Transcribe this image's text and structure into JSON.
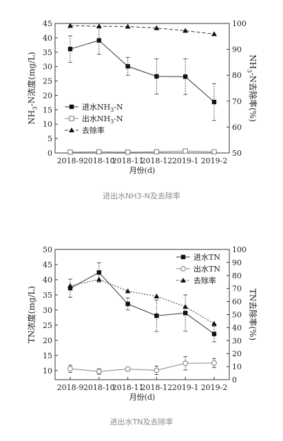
{
  "chart_data": [
    {
      "type": "line",
      "title": "",
      "caption": "进出水NH3-N及去除率",
      "categories": [
        "2018-9",
        "2018-10",
        "2018-11",
        "2018-12",
        "2019-1",
        "2019-2"
      ],
      "xlabel": "月份(d)",
      "ylabel": "NH3-N浓度(mg/L)",
      "y2label": "NH3-N去除率(%)",
      "ylim": [
        0,
        45
      ],
      "y2lim": [
        50,
        100
      ],
      "yticks": [
        0,
        5,
        10,
        15,
        20,
        25,
        30,
        35,
        40,
        45
      ],
      "y2ticks": [
        50,
        60,
        70,
        80,
        90,
        100
      ],
      "legend_position": "left-middle",
      "grid": false,
      "series": [
        {
          "name": "进水NH3-N",
          "axis": "left",
          "marker": "filled-square",
          "line": "solid",
          "values": [
            36.1,
            39.1,
            30.1,
            26.6,
            26.5,
            17.7
          ],
          "error": [
            4.6,
            4.8,
            3.1,
            6.1,
            6.2,
            6.4
          ]
        },
        {
          "name": "出水NH3-N",
          "axis": "left",
          "marker": "open-square",
          "line": "solid",
          "values": [
            0.3,
            0.4,
            0.3,
            0.4,
            0.7,
            0.4
          ],
          "error": [
            0.4,
            0.5,
            0.4,
            0.6,
            0.7,
            0.4
          ]
        },
        {
          "name": "去除率",
          "axis": "right",
          "marker": "filled-triangle",
          "line": "dashed",
          "values": [
            99.1,
            98.9,
            98.8,
            98.2,
            97.2,
            95.9
          ]
        }
      ]
    },
    {
      "type": "line",
      "title": "",
      "caption": "进出水TN及去除率",
      "categories": [
        "2018-9",
        "2018-10",
        "2018-11",
        "2018-12",
        "2019-1",
        "2019-2"
      ],
      "xlabel": "月份(d)",
      "ylabel": "TN浓度(mg/L)",
      "y2label": "TN去除率(%)",
      "ylim": [
        7,
        50
      ],
      "y2lim": [
        0,
        100
      ],
      "yticks": [
        10,
        15,
        20,
        25,
        30,
        35,
        40,
        45,
        50
      ],
      "y2ticks": [
        0,
        10,
        20,
        30,
        40,
        50,
        60,
        70,
        80,
        90,
        100
      ],
      "legend_position": "top-right",
      "grid": false,
      "series": [
        {
          "name": "进水TN",
          "axis": "left",
          "marker": "filled-square",
          "line": "solid",
          "values": [
            37.2,
            42.4,
            32.0,
            28.1,
            29.0,
            22.1
          ],
          "error": [
            3.0,
            3.2,
            2.0,
            5.2,
            6.0,
            2.6
          ]
        },
        {
          "name": "出水TN",
          "axis": "left",
          "marker": "open-circle",
          "line": "solid",
          "values": [
            10.6,
            9.7,
            10.5,
            10.1,
            12.4,
            12.5
          ],
          "error": [
            1.2,
            0.9,
            0.6,
            1.4,
            2.2,
            1.5
          ]
        },
        {
          "name": "去除率",
          "axis": "right",
          "marker": "filled-triangle",
          "line": "dotted",
          "values": [
            72,
            77,
            68,
            64,
            56,
            43
          ]
        }
      ]
    }
  ]
}
